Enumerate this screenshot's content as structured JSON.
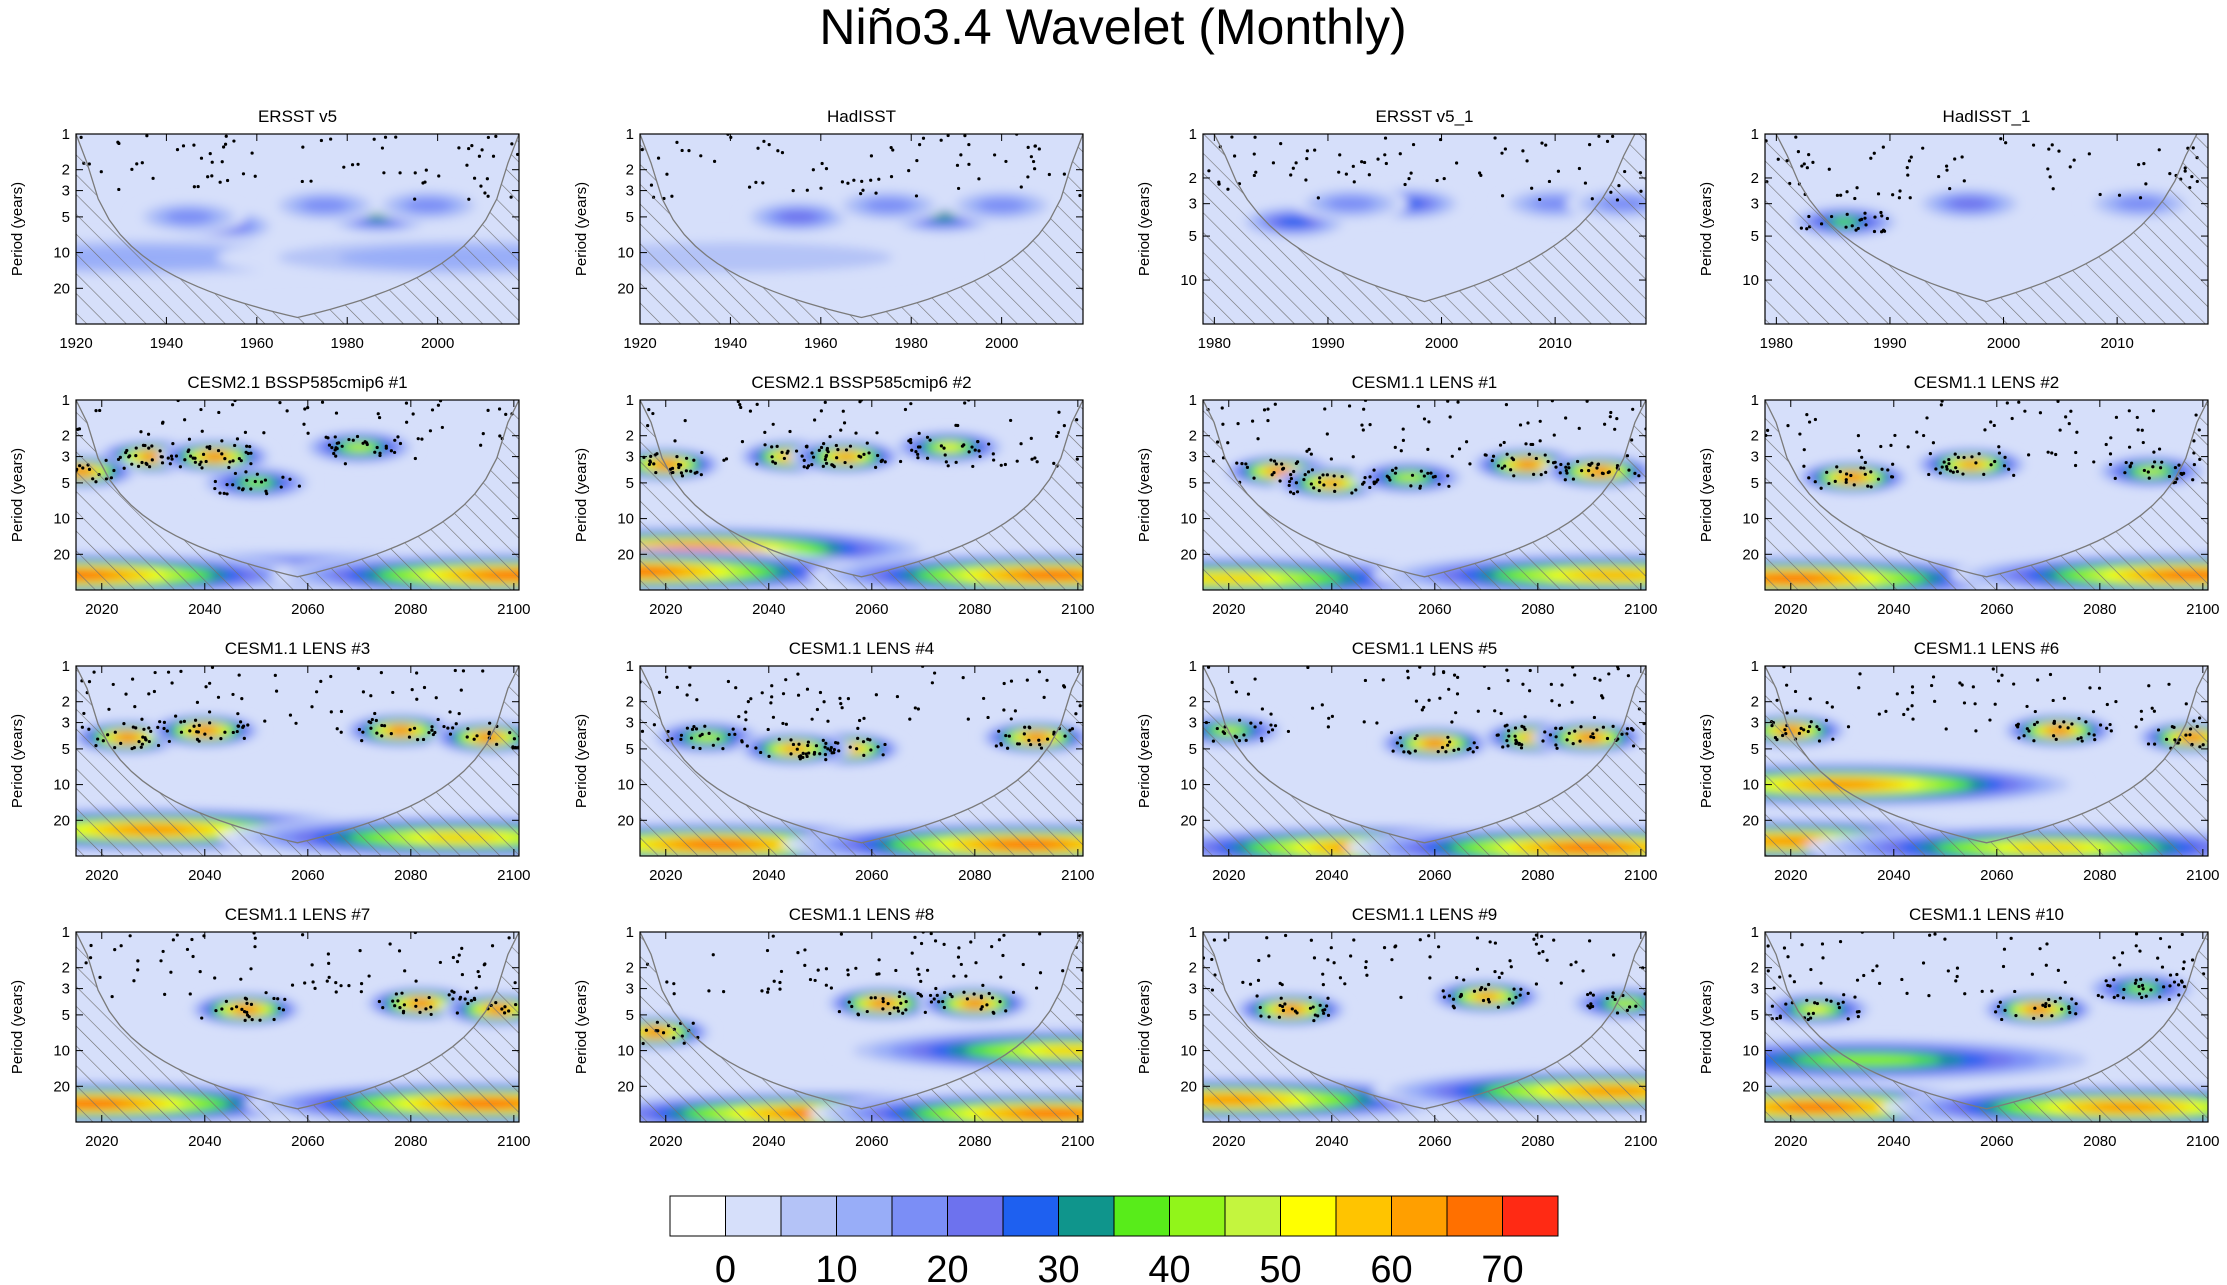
{
  "figure_title": "Niño3.4 Wavelet (Monthly)",
  "colors": {
    "background": "#d6dffa",
    "hatch": "#6f6f6f",
    "coi_line": "#7a7a7a",
    "dot": "#000000"
  },
  "colorbar": {
    "labels": [
      "0",
      "10",
      "20",
      "30",
      "40",
      "50",
      "60",
      "70"
    ],
    "label_values": [
      0,
      10,
      20,
      30,
      40,
      50,
      60,
      70
    ],
    "levels": [
      0,
      5,
      10,
      15,
      20,
      25,
      30,
      35,
      40,
      45,
      50,
      55,
      60,
      65,
      70,
      75
    ],
    "colors": [
      "#ffffff",
      "#d6dffa",
      "#b4c3f7",
      "#98adf8",
      "#7b8ef6",
      "#6d72ee",
      "#1e60f0",
      "#0f958c",
      "#58ec1a",
      "#91f51a",
      "#c4f53e",
      "#ffff00",
      "#ffc400",
      "#ff9f00",
      "#ff7000",
      "#ff2a14"
    ]
  },
  "chart_data": [
    {
      "type": "heatmap",
      "title": "ERSST v5",
      "ylabel": "Period (years)",
      "xlim": [
        1920,
        2018
      ],
      "xticks": [
        1920,
        1940,
        1960,
        1980,
        2000
      ],
      "yticks": [
        1,
        2,
        3,
        5,
        10,
        20
      ],
      "ylim": [
        1,
        40
      ],
      "blobs": [
        {
          "x": 1952,
          "p": 6,
          "level": 6
        },
        {
          "x": 1945,
          "p": 5,
          "level": 4
        },
        {
          "x": 1987,
          "p": 5,
          "level": 7
        },
        {
          "x": 1975,
          "p": 4,
          "level": 4
        },
        {
          "x": 1998,
          "p": 4,
          "level": 4
        },
        {
          "x": 1935,
          "p": 11,
          "level": 3
        },
        {
          "x": 2005,
          "p": 11,
          "level": 3
        }
      ]
    },
    {
      "type": "heatmap",
      "title": "HadISST",
      "ylabel": "Period (years)",
      "xlim": [
        1920,
        2018
      ],
      "xticks": [
        1920,
        1940,
        1960,
        1980,
        2000
      ],
      "yticks": [
        1,
        2,
        3,
        5,
        10,
        20
      ],
      "ylim": [
        1,
        40
      ],
      "blobs": [
        {
          "x": 1955,
          "p": 5,
          "level": 5
        },
        {
          "x": 1987,
          "p": 5,
          "level": 7
        },
        {
          "x": 1975,
          "p": 4,
          "level": 4
        },
        {
          "x": 2000,
          "p": 4,
          "level": 4
        },
        {
          "x": 1940,
          "p": 11,
          "level": 2
        }
      ]
    },
    {
      "type": "heatmap",
      "title": "ERSST v5_1",
      "ylabel": "Period (years)",
      "xlim": [
        1979,
        2018
      ],
      "xticks": [
        1980,
        1990,
        2000,
        2010
      ],
      "yticks": [
        1,
        2,
        3,
        5,
        10
      ],
      "ylim": [
        1,
        20
      ],
      "blobs": [
        {
          "x": 1987,
          "p": 4,
          "level": 6
        },
        {
          "x": 1997,
          "p": 3,
          "level": 6
        },
        {
          "x": 1992,
          "p": 3,
          "level": 4
        },
        {
          "x": 2010,
          "p": 3,
          "level": 4
        },
        {
          "x": 2016,
          "p": 3,
          "level": 4
        }
      ]
    },
    {
      "type": "heatmap",
      "title": "HadISST_1",
      "ylabel": "Period (years)",
      "xlim": [
        1979,
        2018
      ],
      "xticks": [
        1980,
        1990,
        2000,
        2010
      ],
      "yticks": [
        1,
        2,
        3,
        5,
        10
      ],
      "ylim": [
        1,
        20
      ],
      "blobs": [
        {
          "x": 1986,
          "p": 4,
          "level": 8
        },
        {
          "x": 1997,
          "p": 3,
          "level": 5
        },
        {
          "x": 2012,
          "p": 3,
          "level": 4
        }
      ]
    },
    {
      "type": "heatmap",
      "title": "CESM2.1 BSSP585cmip6 #1",
      "ylabel": "Period (years)",
      "xlim": [
        2015,
        2101
      ],
      "xticks": [
        2020,
        2040,
        2060,
        2080,
        2100
      ],
      "yticks": [
        1,
        2,
        3,
        5,
        10,
        20
      ],
      "ylim": [
        1,
        40
      ],
      "blobs": [
        {
          "x": 2030,
          "p": 3,
          "level": 15
        },
        {
          "x": 2042,
          "p": 3,
          "level": 15
        },
        {
          "x": 2016,
          "p": 4,
          "level": 15
        },
        {
          "x": 2050,
          "p": 5,
          "level": 9
        },
        {
          "x": 2070,
          "p": 2.5,
          "level": 10
        },
        {
          "x": 2058,
          "p": 28,
          "level": 7
        },
        {
          "x": 2015,
          "p": 30,
          "level": 15
        },
        {
          "x": 2100,
          "p": 30,
          "level": 15
        }
      ]
    },
    {
      "type": "heatmap",
      "title": "CESM2.1 BSSP585cmip6 #2",
      "ylabel": "Period (years)",
      "xlim": [
        2015,
        2101
      ],
      "xticks": [
        2020,
        2040,
        2060,
        2080,
        2100
      ],
      "yticks": [
        1,
        2,
        3,
        5,
        10,
        20
      ],
      "ylim": [
        1,
        40
      ],
      "blobs": [
        {
          "x": 2020,
          "p": 3.5,
          "level": 15
        },
        {
          "x": 2045,
          "p": 3,
          "level": 15
        },
        {
          "x": 2055,
          "p": 3,
          "level": 14
        },
        {
          "x": 2075,
          "p": 2.5,
          "level": 11
        },
        {
          "x": 2025,
          "p": 18,
          "level": 15
        },
        {
          "x": 2015,
          "p": 28,
          "level": 15
        },
        {
          "x": 2095,
          "p": 30,
          "level": 15
        }
      ]
    },
    {
      "type": "heatmap",
      "title": "CESM1.1 LENS #1",
      "ylabel": "Period (years)",
      "xlim": [
        2015,
        2101
      ],
      "xticks": [
        2020,
        2040,
        2060,
        2080,
        2100
      ],
      "yticks": [
        1,
        2,
        3,
        5,
        10,
        20
      ],
      "ylim": [
        1,
        40
      ],
      "blobs": [
        {
          "x": 2030,
          "p": 4,
          "level": 15
        },
        {
          "x": 2040,
          "p": 5,
          "level": 14
        },
        {
          "x": 2055,
          "p": 4.5,
          "level": 10
        },
        {
          "x": 2078,
          "p": 3.5,
          "level": 15
        },
        {
          "x": 2092,
          "p": 4,
          "level": 15
        },
        {
          "x": 2020,
          "p": 32,
          "level": 12
        },
        {
          "x": 2095,
          "p": 30,
          "level": 13
        }
      ]
    },
    {
      "type": "heatmap",
      "title": "CESM1.1 LENS #2",
      "ylabel": "Period (years)",
      "xlim": [
        2015,
        2101
      ],
      "xticks": [
        2020,
        2040,
        2060,
        2080,
        2100
      ],
      "yticks": [
        1,
        2,
        3,
        5,
        10,
        20
      ],
      "ylim": [
        1,
        40
      ],
      "blobs": [
        {
          "x": 2032,
          "p": 4.5,
          "level": 15
        },
        {
          "x": 2055,
          "p": 3.5,
          "level": 14
        },
        {
          "x": 2090,
          "p": 4,
          "level": 10
        },
        {
          "x": 2020,
          "p": 32,
          "level": 15
        },
        {
          "x": 2098,
          "p": 30,
          "level": 15
        }
      ]
    },
    {
      "type": "heatmap",
      "title": "CESM1.1 LENS #3",
      "ylabel": "Period (years)",
      "xlim": [
        2015,
        2101
      ],
      "xticks": [
        2020,
        2040,
        2060,
        2080,
        2100
      ],
      "yticks": [
        1,
        2,
        3,
        5,
        10,
        20
      ],
      "ylim": [
        1,
        40
      ],
      "blobs": [
        {
          "x": 2025,
          "p": 4,
          "level": 15
        },
        {
          "x": 2040,
          "p": 3.5,
          "level": 15
        },
        {
          "x": 2078,
          "p": 3.5,
          "level": 15
        },
        {
          "x": 2095,
          "p": 4,
          "level": 15
        },
        {
          "x": 2030,
          "p": 24,
          "level": 14
        },
        {
          "x": 2090,
          "p": 28,
          "level": 12
        }
      ]
    },
    {
      "type": "heatmap",
      "title": "CESM1.1 LENS #4",
      "ylabel": "Period (years)",
      "xlim": [
        2015,
        2101
      ],
      "xticks": [
        2020,
        2040,
        2060,
        2080,
        2100
      ],
      "yticks": [
        1,
        2,
        3,
        5,
        10,
        20
      ],
      "ylim": [
        1,
        40
      ],
      "blobs": [
        {
          "x": 2028,
          "p": 4,
          "level": 10
        },
        {
          "x": 2055,
          "p": 5,
          "level": 15
        },
        {
          "x": 2045,
          "p": 5,
          "level": 14
        },
        {
          "x": 2092,
          "p": 4,
          "level": 15
        },
        {
          "x": 2030,
          "p": 32,
          "level": 15
        },
        {
          "x": 2090,
          "p": 32,
          "level": 15
        }
      ]
    },
    {
      "type": "heatmap",
      "title": "CESM1.1 LENS #5",
      "ylabel": "Period (years)",
      "xlim": [
        2015,
        2101
      ],
      "xticks": [
        2020,
        2040,
        2060,
        2080,
        2100
      ],
      "yticks": [
        1,
        2,
        3,
        5,
        10,
        20
      ],
      "ylim": [
        1,
        40
      ],
      "blobs": [
        {
          "x": 2020,
          "p": 3.5,
          "level": 10
        },
        {
          "x": 2060,
          "p": 4.5,
          "level": 15
        },
        {
          "x": 2080,
          "p": 4,
          "level": 15
        },
        {
          "x": 2090,
          "p": 4,
          "level": 15
        },
        {
          "x": 2050,
          "p": 34,
          "level": 15
        },
        {
          "x": 2090,
          "p": 34,
          "level": 15
        }
      ]
    },
    {
      "type": "heatmap",
      "title": "CESM1.1 LENS #6",
      "ylabel": "Period (years)",
      "xlim": [
        2015,
        2101
      ],
      "xticks": [
        2020,
        2040,
        2060,
        2080,
        2100
      ],
      "yticks": [
        1,
        2,
        3,
        5,
        10,
        20
      ],
      "ylim": [
        1,
        40
      ],
      "blobs": [
        {
          "x": 2020,
          "p": 3.5,
          "level": 15
        },
        {
          "x": 2030,
          "p": 10,
          "level": 14
        },
        {
          "x": 2072,
          "p": 3.5,
          "level": 15
        },
        {
          "x": 2098,
          "p": 4,
          "level": 15
        },
        {
          "x": 2020,
          "p": 30,
          "level": 14
        },
        {
          "x": 2070,
          "p": 34,
          "level": 12
        }
      ]
    },
    {
      "type": "heatmap",
      "title": "CESM1.1 LENS #7",
      "ylabel": "Period (years)",
      "xlim": [
        2015,
        2101
      ],
      "xticks": [
        2020,
        2040,
        2060,
        2080,
        2100
      ],
      "yticks": [
        1,
        2,
        3,
        5,
        10,
        20
      ],
      "ylim": [
        1,
        40
      ],
      "blobs": [
        {
          "x": 2048,
          "p": 4.5,
          "level": 15
        },
        {
          "x": 2082,
          "p": 4,
          "level": 15
        },
        {
          "x": 2097,
          "p": 4.5,
          "level": 15
        },
        {
          "x": 2018,
          "p": 28,
          "level": 15
        },
        {
          "x": 2095,
          "p": 28,
          "level": 15
        }
      ]
    },
    {
      "type": "heatmap",
      "title": "CESM1.1 LENS #8",
      "ylabel": "Period (years)",
      "xlim": [
        2015,
        2101
      ],
      "xticks": [
        2020,
        2040,
        2060,
        2080,
        2100
      ],
      "yticks": [
        1,
        2,
        3,
        5,
        10,
        20
      ],
      "ylim": [
        1,
        40
      ],
      "blobs": [
        {
          "x": 2018,
          "p": 7,
          "level": 15
        },
        {
          "x": 2062,
          "p": 4,
          "level": 15
        },
        {
          "x": 2080,
          "p": 4,
          "level": 15
        },
        {
          "x": 2050,
          "p": 34,
          "level": 15
        },
        {
          "x": 2095,
          "p": 34,
          "level": 15
        },
        {
          "x": 2100,
          "p": 10,
          "level": 12
        }
      ]
    },
    {
      "type": "heatmap",
      "title": "CESM1.1 LENS #9",
      "ylabel": "Period (years)",
      "xlim": [
        2015,
        2101
      ],
      "xticks": [
        2020,
        2040,
        2060,
        2080,
        2100
      ],
      "yticks": [
        1,
        2,
        3,
        5,
        10,
        20
      ],
      "ylim": [
        1,
        40
      ],
      "blobs": [
        {
          "x": 2032,
          "p": 4.5,
          "level": 15
        },
        {
          "x": 2070,
          "p": 3.5,
          "level": 14
        },
        {
          "x": 2097,
          "p": 4,
          "level": 10
        },
        {
          "x": 2020,
          "p": 26,
          "level": 14
        },
        {
          "x": 2095,
          "p": 22,
          "level": 14
        }
      ]
    },
    {
      "type": "heatmap",
      "title": "CESM1.1 LENS #10",
      "ylabel": "Period (years)",
      "xlim": [
        2015,
        2101
      ],
      "xticks": [
        2020,
        2040,
        2060,
        2080,
        2100
      ],
      "yticks": [
        1,
        2,
        3,
        5,
        10,
        20
      ],
      "ylim": [
        1,
        40
      ],
      "blobs": [
        {
          "x": 2025,
          "p": 4.5,
          "level": 11
        },
        {
          "x": 2068,
          "p": 4.5,
          "level": 15
        },
        {
          "x": 2088,
          "p": 3,
          "level": 9
        },
        {
          "x": 2035,
          "p": 12,
          "level": 9
        },
        {
          "x": 2025,
          "p": 30,
          "level": 15
        },
        {
          "x": 2085,
          "p": 30,
          "level": 14
        }
      ]
    }
  ]
}
